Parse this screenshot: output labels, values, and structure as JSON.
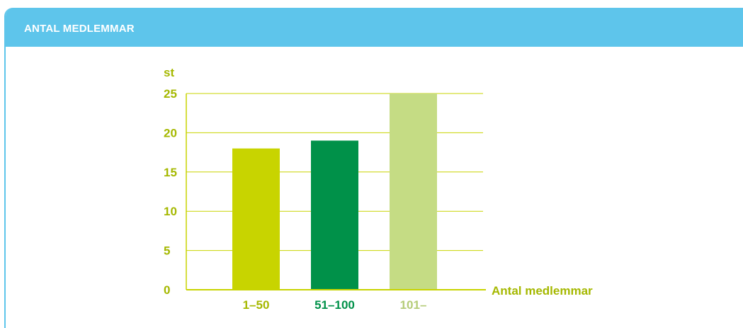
{
  "panel": {
    "title": "ANTAL MEDLEMMAR"
  },
  "colors": {
    "header": "#5ec5eb",
    "axis": "#c8d400",
    "bar_1": "#c8d400",
    "bar_2": "#009149",
    "bar_3": "#c5dc84"
  },
  "chart_data": {
    "type": "bar",
    "title": "",
    "ylabel": "st",
    "xlabel": "Antal medlemmar",
    "ylim": [
      0,
      25
    ],
    "yticks": [
      0,
      5,
      10,
      15,
      20,
      25
    ],
    "grid": true,
    "categories": [
      "1–50",
      "51–100",
      "101–"
    ],
    "values": [
      18,
      19,
      25
    ],
    "bar_colors": [
      "#c8d400",
      "#009149",
      "#c5dc84"
    ]
  }
}
